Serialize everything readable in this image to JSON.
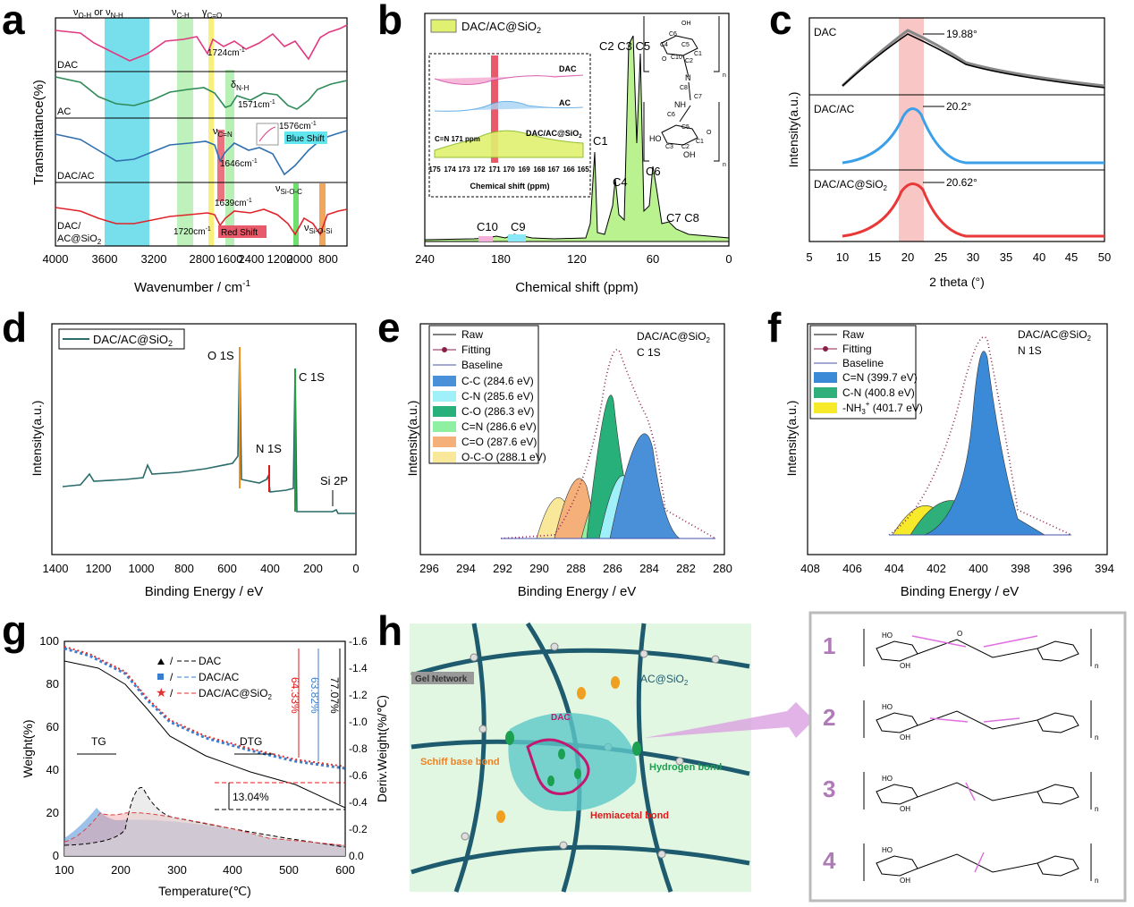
{
  "panels": {
    "a": {
      "letter": "a",
      "xlabel": "Wavenumber / cm",
      "xlabel_sup": "-1",
      "ylabel": "Transmittance(%)",
      "xticks": [
        "4000",
        "3600",
        "3200",
        "2800",
        "2400",
        "2000",
        "1600",
        "1200",
        "800"
      ],
      "top_labels": [
        "ν",
        "O-H",
        " or ν",
        "N-H",
        "ν",
        "C-H",
        "γ",
        "C=O"
      ],
      "series_labels": [
        "DAC",
        "AC",
        "DAC/AC",
        "DAC/",
        "AC@SiO",
        "2"
      ],
      "ann": [
        "1724cm",
        "-1",
        "δ",
        "N-H",
        "1571cm",
        "-1",
        "1576cm",
        "-1",
        "Blue Shift",
        "ν",
        "C=N",
        "1646cm",
        "-1",
        "1639cm",
        "-1",
        "ν",
        "Si-O-C",
        "1720cm",
        "-1",
        "Red Shift",
        "ν",
        "Si-O-Si"
      ],
      "colors": {
        "DAC": "#e2387f",
        "AC": "#2e8b57",
        "DAC/AC": "#2f6fb0",
        "DAC/AC@SiO2": "#e0242a",
        "band_oh": "#5fd8e8",
        "band_ch": "#b7f0b5",
        "band_co": "#f8f07a",
        "band_sioc": "#6ee06e",
        "band_siosi": "#f2a65a",
        "red_shift": "#e85a6a"
      }
    },
    "b": {
      "letter": "b",
      "legend": [
        "DAC/AC@SiO",
        "2"
      ],
      "xlabel": "Chemical shift (ppm)",
      "xticks": [
        "240",
        "180",
        "120",
        "60",
        "0"
      ],
      "peaks": [
        "C2 C3 C5",
        "C1",
        "C4",
        "C6",
        "C7 C8",
        "C10",
        "C9"
      ],
      "inset": {
        "labels": [
          "DAC",
          "AC",
          "DAC/AC@SiO",
          "2",
          "C=N 171 ppm"
        ],
        "ticks": [
          "175",
          "174",
          "173",
          "172",
          "171",
          "170",
          "169",
          "168",
          "167",
          "166",
          "165"
        ],
        "xlabel": "Chemical shift (ppm)"
      },
      "struct_text": [
        "OH",
        "C6",
        "C4",
        "C5",
        "O",
        "C1",
        "C10",
        "C2",
        "N",
        "C8",
        "C7",
        "NH",
        "C6",
        "C5",
        "HO",
        "C3",
        "C2",
        "C1",
        "OH",
        "O",
        "n",
        "n"
      ]
    },
    "c": {
      "letter": "c",
      "xlabel": "2 theta (°)",
      "ylabel": "Intensity(a.u.)",
      "xticks": [
        "5",
        "10",
        "15",
        "20",
        "25",
        "30",
        "35",
        "40",
        "45",
        "50"
      ],
      "series": [
        "DAC",
        "DAC/AC",
        "DAC/AC@SiO",
        "2"
      ],
      "peaks": [
        "19.88°",
        "20.2°",
        "20.62°"
      ]
    },
    "d": {
      "letter": "d",
      "legend": [
        "DAC/AC@SiO",
        "2"
      ],
      "xlabel": "Binding Energy / eV",
      "ylabel": "Intensity(a.u.)",
      "xticks": [
        "1400",
        "1200",
        "1000",
        "800",
        "600",
        "400",
        "200",
        "0"
      ],
      "peaks": [
        "O 1S",
        "C 1S",
        "N 1S",
        "Si 2P"
      ]
    },
    "e": {
      "letter": "e",
      "title": [
        "DAC/AC@SiO",
        "2",
        "C 1S"
      ],
      "legend": [
        "Raw",
        "Fitting",
        "Baseline",
        "C-C (284.6 eV)",
        "C-N (285.6 eV)",
        "C-O (286.3 eV)",
        "C=N (286.6 eV)",
        "C=O (287.6 eV)",
        "O-C-O (288.1 eV)"
      ],
      "xlabel": "Binding Energy / eV",
      "ylabel": "Intensity(a.u.)",
      "xticks": [
        "296",
        "294",
        "292",
        "290",
        "288",
        "286",
        "284",
        "282",
        "280"
      ]
    },
    "f": {
      "letter": "f",
      "title": [
        "DAC/AC@SiO",
        "2",
        "N 1S"
      ],
      "legend": [
        "Raw",
        "Fitting",
        "Baseline",
        "C=N (399.7 eV)",
        "C-N (400.8 eV)",
        "-NH",
        "3",
        "+",
        " (401.7 eV)"
      ],
      "xlabel": "Binding Energy / eV",
      "ylabel": "Intensity(a.u.)",
      "xticks": [
        "408",
        "406",
        "404",
        "402",
        "400",
        "398",
        "396",
        "394"
      ]
    },
    "g": {
      "letter": "g",
      "xlabel": "Temperature(℃)",
      "ylabel": "Weight(%)",
      "ylabel_right": "Deriv.Weight(%/℃)",
      "xticks": [
        "100",
        "200",
        "300",
        "400",
        "500",
        "600"
      ],
      "yticks": [
        "0",
        "20",
        "40",
        "60",
        "80",
        "100"
      ],
      "yticks_right": [
        "0.0",
        "-0.2",
        "-0.4",
        "-0.6",
        "-0.8",
        "-1.0",
        "-1.2",
        "-1.4",
        "-1.6"
      ],
      "legend": [
        "DAC",
        "DAC/AC",
        "DAC/AC@SiO",
        "2"
      ],
      "legend_sep": "/",
      "ann": [
        "TG",
        "DTG",
        "64.33%",
        "63.82%",
        "77.07%",
        "13.04%"
      ]
    },
    "h": {
      "letter": "h",
      "labels": [
        "Gel Network",
        "AC@SiO",
        "2",
        "DAC",
        "Schiff base bond",
        "Hydrogen bond",
        "Hemiacetal bond"
      ],
      "rows": [
        "1",
        "2",
        "3",
        "4"
      ],
      "struct_text": [
        "HO",
        "OH",
        "O",
        "n"
      ]
    }
  }
}
